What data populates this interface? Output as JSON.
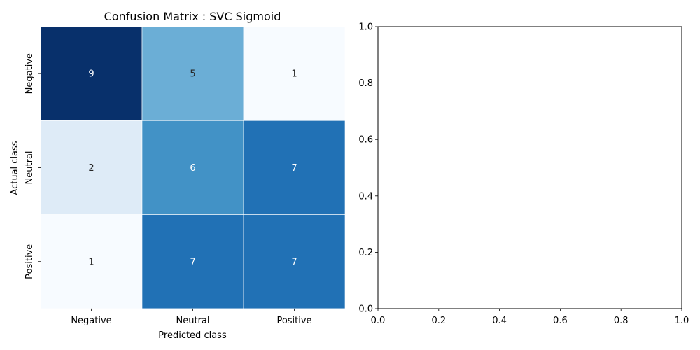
{
  "chart_data": [
    {
      "type": "heatmap",
      "title": "Confusion Matrix : SVC Sigmoid",
      "xlabel": "Predicted class",
      "ylabel": "Actual class",
      "x_categories": [
        "Negative",
        "Neutral",
        "Positive"
      ],
      "y_categories": [
        "Negative",
        "Neutral",
        "Positive"
      ],
      "values": [
        [
          9,
          5,
          1
        ],
        [
          2,
          6,
          7
        ],
        [
          1,
          7,
          7
        ]
      ],
      "colormap": "Blues",
      "vmin": 1,
      "vmax": 9,
      "grid": false
    },
    {
      "type": "line",
      "title": "",
      "xlabel": "",
      "ylabel": "",
      "xlim": [
        0.0,
        1.0
      ],
      "ylim": [
        0.0,
        1.0
      ],
      "x_ticks": [
        "0.0",
        "0.2",
        "0.4",
        "0.6",
        "0.8",
        "1.0"
      ],
      "y_ticks": [
        "0.0",
        "0.2",
        "0.4",
        "0.6",
        "0.8",
        "1.0"
      ],
      "series": [],
      "grid": false
    }
  ],
  "colors": {
    "blues": [
      "#f7fbff",
      "#deebf7",
      "#c6dbef",
      "#9ecae1",
      "#6baed6",
      "#4292c6",
      "#2171b5",
      "#08519c",
      "#08306b"
    ],
    "cell_border": "#ffffff",
    "dark_text": "#262626",
    "light_text": "#ffffff"
  }
}
